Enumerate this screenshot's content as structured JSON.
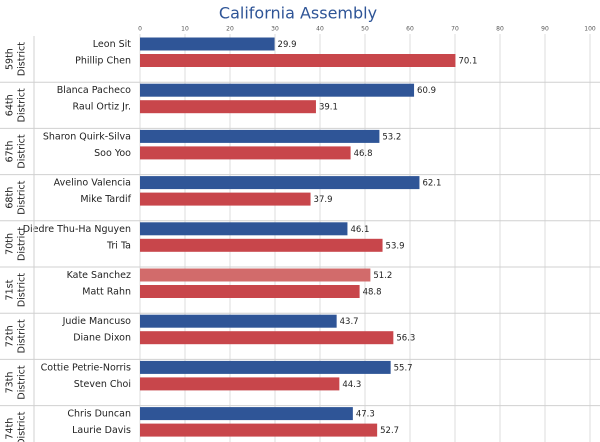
{
  "chart_data": {
    "type": "bar",
    "orientation": "horizontal",
    "title": "California Assembly",
    "xlim": [
      0,
      100
    ],
    "xticks": [
      0,
      10,
      20,
      30,
      40,
      50,
      60,
      70,
      80,
      90,
      100
    ],
    "grid": true,
    "groups": [
      {
        "label": [
          "59th",
          "District"
        ],
        "candidates": [
          "Leon Sit",
          "Phillip Chen"
        ],
        "values": [
          29.9,
          70.1
        ],
        "colors": [
          "#2f5597",
          "#c8464b"
        ]
      },
      {
        "label": [
          "64th",
          "District"
        ],
        "candidates": [
          "Blanca Pacheco",
          "Raul Ortiz Jr."
        ],
        "values": [
          60.9,
          39.1
        ],
        "colors": [
          "#2f5597",
          "#c8464b"
        ]
      },
      {
        "label": [
          "67th",
          "District"
        ],
        "candidates": [
          "Sharon Quirk-Silva",
          "Soo Yoo"
        ],
        "values": [
          53.2,
          46.8
        ],
        "colors": [
          "#2f5597",
          "#c8464b"
        ]
      },
      {
        "label": [
          "68th",
          "District"
        ],
        "candidates": [
          "Avelino Valencia",
          "Mike Tardif"
        ],
        "values": [
          62.1,
          37.9
        ],
        "colors": [
          "#2f5597",
          "#c8464b"
        ]
      },
      {
        "label": [
          "70th",
          "District"
        ],
        "candidates": [
          "Diedre Thu-Ha Nguyen",
          "Tri Ta"
        ],
        "values": [
          46.1,
          53.9
        ],
        "colors": [
          "#2f5597",
          "#c8464b"
        ]
      },
      {
        "label": [
          "71st",
          "District"
        ],
        "candidates": [
          "Kate Sanchez",
          "Matt Rahn"
        ],
        "values": [
          51.2,
          48.8
        ],
        "colors": [
          "#d26b6b",
          "#c8464b"
        ]
      },
      {
        "label": [
          "72th",
          "District"
        ],
        "candidates": [
          "Judie Mancuso",
          "Diane Dixon"
        ],
        "values": [
          43.7,
          56.3
        ],
        "colors": [
          "#2f5597",
          "#c8464b"
        ]
      },
      {
        "label": [
          "73th",
          "District"
        ],
        "candidates": [
          "Cottie Petrie-Norris",
          "Steven Choi"
        ],
        "values": [
          55.7,
          44.3
        ],
        "colors": [
          "#2f5597",
          "#c8464b"
        ]
      },
      {
        "label": [
          "74th",
          "District"
        ],
        "candidates": [
          "Chris Duncan",
          "Laurie Davis"
        ],
        "values": [
          47.3,
          52.7
        ],
        "colors": [
          "#2f5597",
          "#c8464b"
        ]
      }
    ]
  }
}
